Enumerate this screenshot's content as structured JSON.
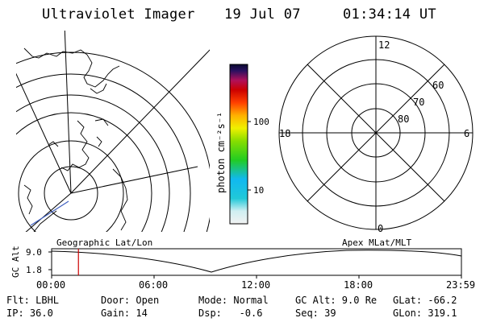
{
  "header": {
    "title": "Ultraviolet Imager",
    "date": "19 Jul 07",
    "time": "01:34:14 UT"
  },
  "colorbar": {
    "unit": "photon cm⁻²s⁻¹",
    "ticks": [
      "100",
      "10"
    ]
  },
  "polar_plot": {
    "mlt_labels": [
      "12",
      "18",
      "6",
      "0"
    ],
    "lat_labels": [
      "60",
      "70",
      "80"
    ]
  },
  "orbit": {
    "left_label": "Geographic Lat/Lon",
    "right_label": "Apex MLat/MLT",
    "axis_label": "GC Alt",
    "y_ticks": [
      "9.0",
      "1.8"
    ],
    "x_ticks": [
      "00:00",
      "06:00",
      "12:00",
      "18:00",
      "23:59"
    ],
    "marker_time_hours": 1.57,
    "marker_color": "#cc0000"
  },
  "info": {
    "row1": [
      "Flt: LBHL",
      "Door: Open",
      "Mode: Normal",
      "GC Alt: 9.0 Re",
      "GLat: -66.2"
    ],
    "row2": [
      "IP: 36.0",
      "Gain: 14",
      "Dsp:   -0.6",
      "Seq: 39",
      "GLon: 319.1"
    ]
  }
}
